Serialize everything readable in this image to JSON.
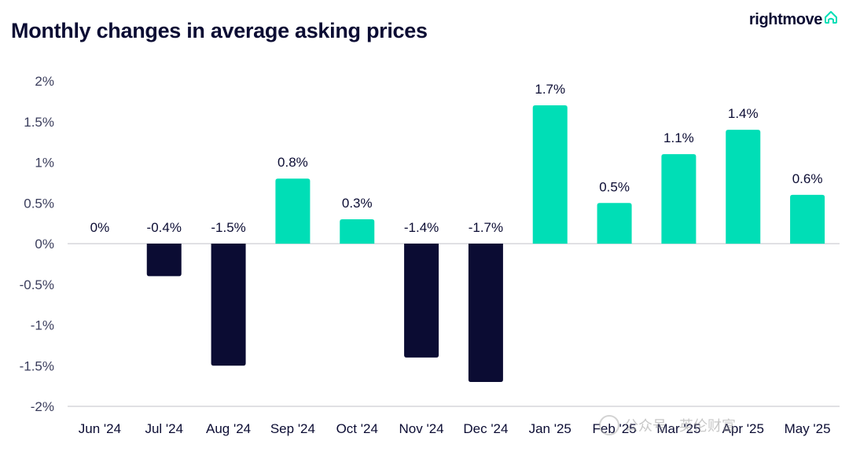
{
  "header": {
    "title": "Monthly changes in average asking prices",
    "brand": "rightmove"
  },
  "watermark": {
    "text": "公众号 · 英伦财富"
  },
  "colors": {
    "positive": "#00deb6",
    "negative": "#0b0c33",
    "text": "#0b0c33",
    "axis_text": "#3a3d5c",
    "baseline": "#d6d6dc"
  },
  "chart_data": {
    "type": "bar",
    "title": "Monthly changes in average asking prices",
    "xlabel": "",
    "ylabel": "",
    "categories": [
      "Jun '24",
      "Jul '24",
      "Aug '24",
      "Sep '24",
      "Oct '24",
      "Nov '24",
      "Dec '24",
      "Jan '25",
      "Feb '25",
      "Mar '25",
      "Apr '25",
      "May '25"
    ],
    "values": [
      0,
      -0.4,
      -1.5,
      0.8,
      0.3,
      -1.4,
      -1.7,
      1.7,
      0.5,
      1.1,
      1.4,
      0.6
    ],
    "data_labels": [
      "0%",
      "-0.4%",
      "-1.5%",
      "0.8%",
      "0.3%",
      "-1.4%",
      "-1.7%",
      "1.7%",
      "0.5%",
      "1.1%",
      "1.4%",
      "0.6%"
    ],
    "y_ticks": [
      2,
      1.5,
      1,
      0.5,
      0,
      -0.5,
      -1,
      -1.5,
      -2
    ],
    "y_tick_labels": [
      "2%",
      "1.5%",
      "1%",
      "0.5%",
      "0%",
      "-0.5%",
      "-1%",
      "-1.5%",
      "-2%"
    ],
    "ylim": [
      -2,
      2
    ],
    "grid": false,
    "legend": "none"
  }
}
